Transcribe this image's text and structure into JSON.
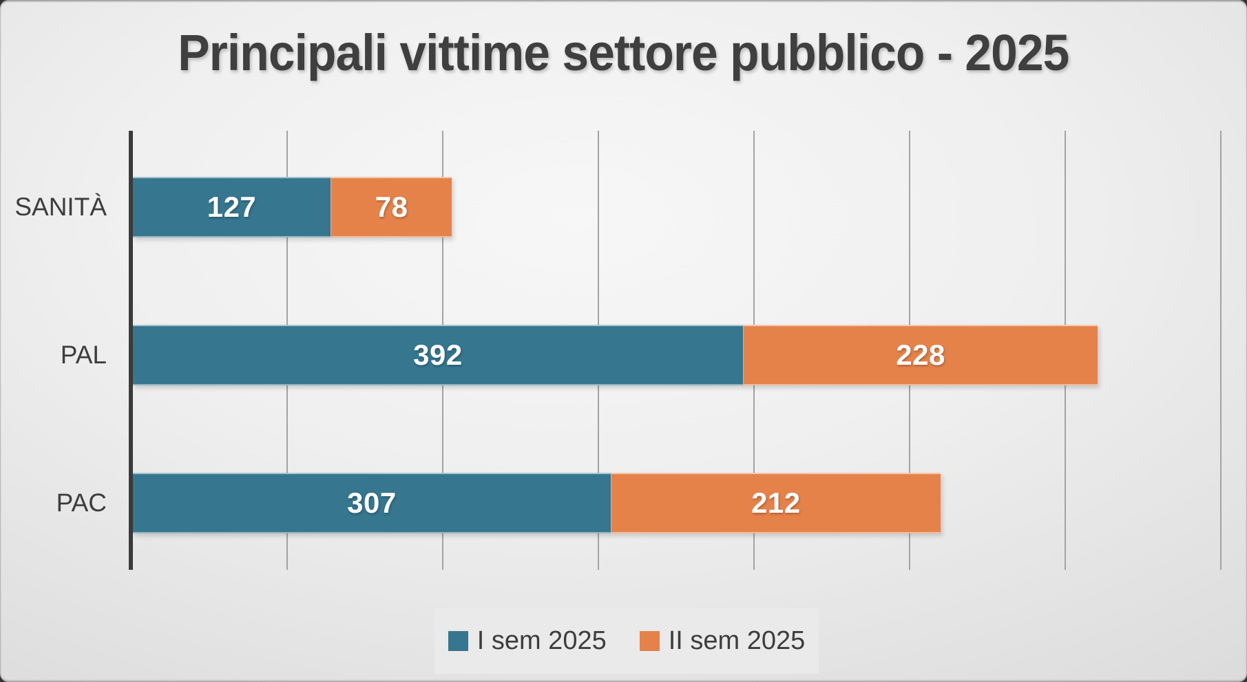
{
  "slide": {
    "title": "Principali vittime settore pubblico - 2025"
  },
  "chart_data": {
    "type": "bar",
    "orientation": "horizontal",
    "stacked": true,
    "title": "Principali vittime settore pubblico - 2025",
    "categories": [
      "SANITÀ",
      "PAL",
      "PAC"
    ],
    "series": [
      {
        "name": "I sem 2025",
        "color": "#36768F",
        "values": [
          127,
          392,
          307
        ]
      },
      {
        "name": "II sem 2025",
        "color": "#E5824A",
        "values": [
          78,
          228,
          212
        ]
      }
    ],
    "totals": [
      205,
      620,
      519
    ],
    "xlabel": "",
    "ylabel": "",
    "xlim": [
      0,
      700
    ],
    "gridline_interval": 100,
    "grid": "vertical-gridlines-on",
    "legend_position": "bottom",
    "data_labels": "white, centered inside segments",
    "colors": {
      "background_gradient": [
        "#f7f7f7",
        "#c6c6c6"
      ],
      "gridline": "#a3a3a3",
      "axis_line": "#3b3b3b",
      "text": "#3f3f3f"
    }
  }
}
